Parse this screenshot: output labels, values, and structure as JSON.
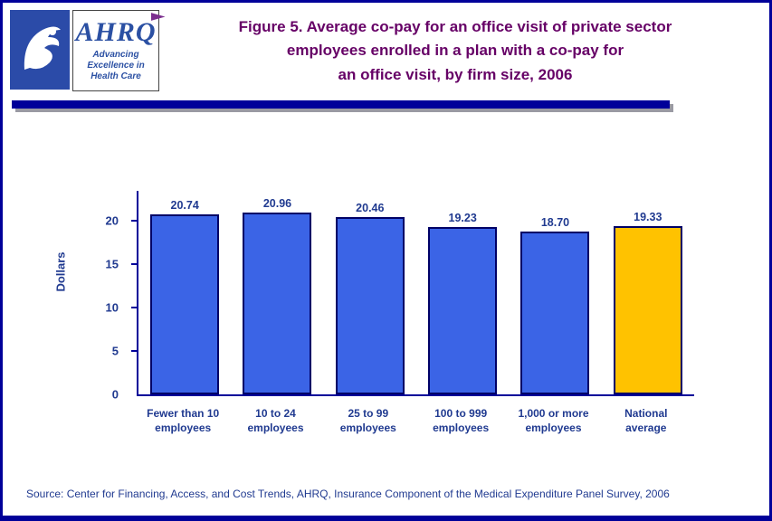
{
  "header": {
    "ahrq_wordmark": "AHRQ",
    "ahrq_tagline_line1": "Advancing",
    "ahrq_tagline_line2": "Excellence in",
    "ahrq_tagline_line3": "Health Care",
    "title_line1": "Figure 5. Average co-pay for an office visit of private sector",
    "title_line2": "employees enrolled in a plan with a co-pay for",
    "title_line3": "an office visit, by firm size, 2006"
  },
  "colors": {
    "border_navy": "#000099",
    "title_purple": "#660066",
    "label_navy": "#203A90",
    "bar_blue": "#3B64E6",
    "bar_gold": "#FFC200",
    "rule_shadow_gray": "#9A9AA3"
  },
  "chart_data": {
    "type": "bar",
    "title": "Figure 5. Average co-pay for an office visit of private sector employees enrolled in a plan with a co-pay for an office visit, by firm size, 2006",
    "xlabel": "",
    "ylabel": "Dollars",
    "ylim": [
      0,
      23.4
    ],
    "yticks": [
      0,
      5,
      10,
      15,
      20
    ],
    "grid": false,
    "legend_position": "none",
    "categories": [
      [
        "Fewer than 10",
        "employees"
      ],
      [
        "10 to 24",
        "employees"
      ],
      [
        "25 to 99",
        "employees"
      ],
      [
        "100 to 999",
        "employees"
      ],
      [
        "1,000 or more",
        "employees"
      ],
      [
        "National",
        "average"
      ]
    ],
    "values": [
      20.74,
      20.96,
      20.46,
      19.23,
      18.7,
      19.33
    ],
    "value_labels": [
      "20.74",
      "20.96",
      "20.46",
      "19.23",
      "18.70",
      "19.33"
    ],
    "bar_colors": [
      "#3B64E6",
      "#3B64E6",
      "#3B64E6",
      "#3B64E6",
      "#3B64E6",
      "#FFC200"
    ]
  },
  "footer": {
    "source": "Source: Center for Financing, Access, and Cost Trends, AHRQ, Insurance Component of the Medical Expenditure Panel Survey, 2006"
  }
}
